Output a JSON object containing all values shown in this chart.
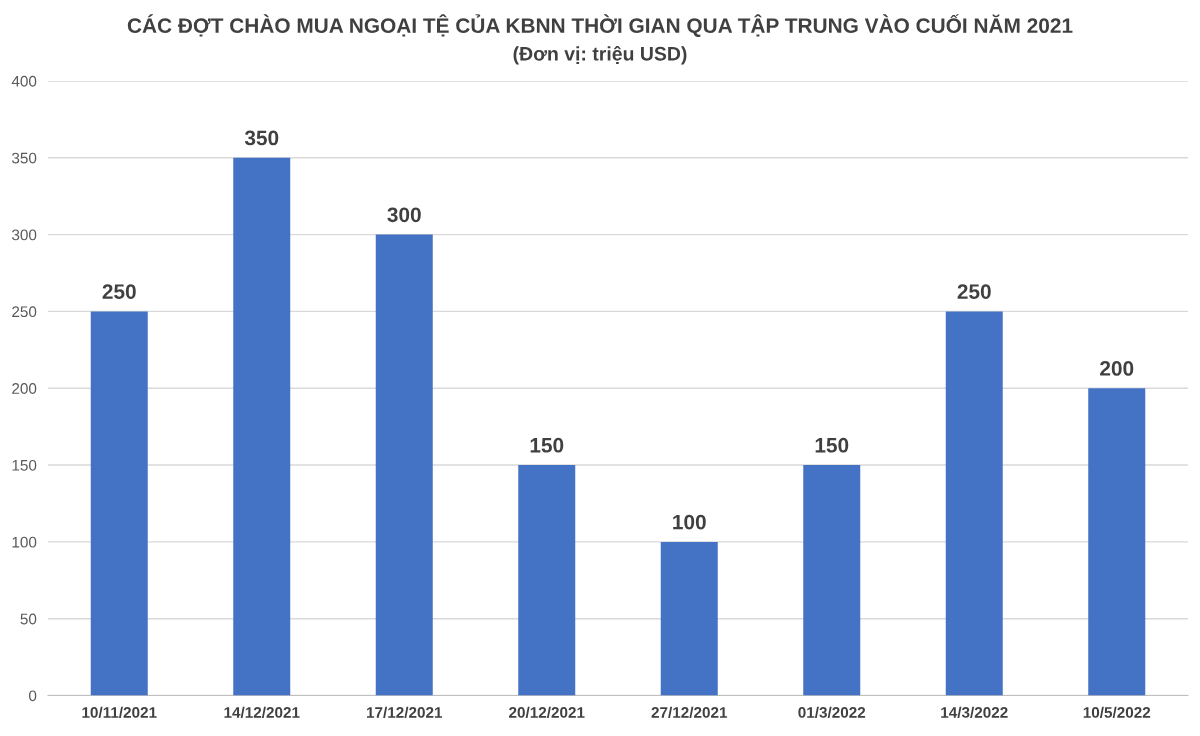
{
  "chart_data": {
    "type": "bar",
    "title": "CÁC ĐỢT CHÀO MUA NGOẠI TỆ CỦA KBNN THỜI GIAN QUA TẬP TRUNG VÀO CUỐI NĂM 2021",
    "subtitle": "(Đơn vị: triệu USD)",
    "categories": [
      "10/11/2021",
      "14/12/2021",
      "17/12/2021",
      "20/12/2021",
      "27/12/2021",
      "01/3/2022",
      "14/3/2022",
      "10/5/2022"
    ],
    "values": [
      250,
      350,
      300,
      150,
      100,
      150,
      250,
      200
    ],
    "color": "#4472c4",
    "ylim": [
      0,
      400
    ],
    "yticks": [
      0,
      50,
      100,
      150,
      200,
      250,
      300,
      350,
      400
    ],
    "grid": "y",
    "data_labels": true
  }
}
